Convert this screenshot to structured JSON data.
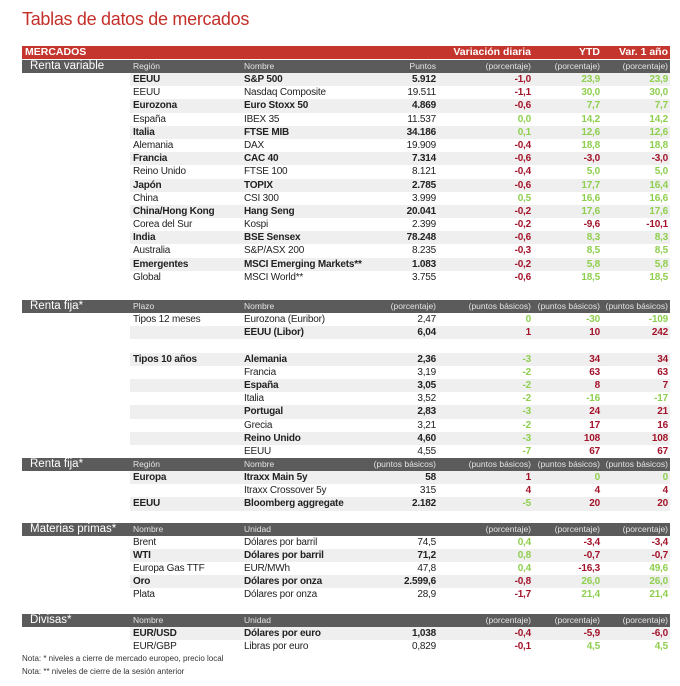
{
  "title": "Tablas de datos de mercados",
  "header": {
    "label": "MERCADOS",
    "col_daily": "Variación diaria",
    "col_ytd": "YTD",
    "col_year": "Var. 1 año"
  },
  "colors": {
    "negative": "#a3142b",
    "positive": "#8fcf4f",
    "header_red": "#c3352d",
    "section_gray": "#5b5b5b"
  },
  "sections": [
    {
      "label": "Renta variable",
      "cols": [
        "Región",
        "Nombre",
        "Puntos",
        "(porcentaje)",
        "(porcentaje)",
        "(porcentaje)"
      ],
      "shade_start": 0,
      "gap_after": 16,
      "rows": [
        [
          "EEUU",
          "S&P 500",
          "5.912",
          [
            "-1,0",
            "r"
          ],
          [
            "23,9",
            "g"
          ],
          [
            "23,9",
            "g"
          ]
        ],
        [
          "EEUU",
          "Nasdaq Composite",
          "19.511",
          [
            "-1,1",
            "r"
          ],
          [
            "30,0",
            "g"
          ],
          [
            "30,0",
            "g"
          ]
        ],
        [
          "Eurozona",
          "Euro Stoxx 50",
          "4.869",
          [
            "-0,6",
            "r"
          ],
          [
            "7,7",
            "g"
          ],
          [
            "7,7",
            "g"
          ]
        ],
        [
          "España",
          "IBEX 35",
          "11.537",
          [
            "0,0",
            "g"
          ],
          [
            "14,2",
            "g"
          ],
          [
            "14,2",
            "g"
          ]
        ],
        [
          "Italia",
          "FTSE MIB",
          "34.186",
          [
            "0,1",
            "g"
          ],
          [
            "12,6",
            "g"
          ],
          [
            "12,6",
            "g"
          ]
        ],
        [
          "Alemania",
          "DAX",
          "19.909",
          [
            "-0,4",
            "r"
          ],
          [
            "18,8",
            "g"
          ],
          [
            "18,8",
            "g"
          ]
        ],
        [
          "Francia",
          "CAC 40",
          "7.314",
          [
            "-0,6",
            "r"
          ],
          [
            "-3,0",
            "r"
          ],
          [
            "-3,0",
            "r"
          ]
        ],
        [
          "Reino Unido",
          "FTSE 100",
          "8.121",
          [
            "-0,4",
            "r"
          ],
          [
            "5,0",
            "g"
          ],
          [
            "5,0",
            "g"
          ]
        ],
        [
          "Japón",
          "TOPIX",
          "2.785",
          [
            "-0,6",
            "r"
          ],
          [
            "17,7",
            "g"
          ],
          [
            "16,4",
            "g"
          ]
        ],
        [
          "China",
          "CSI 300",
          "3.999",
          [
            "0,5",
            "g"
          ],
          [
            "16,6",
            "g"
          ],
          [
            "16,6",
            "g"
          ]
        ],
        [
          "China/Hong Kong",
          "Hang Seng",
          "20.041",
          [
            "-0,2",
            "r"
          ],
          [
            "17,6",
            "g"
          ],
          [
            "17,6",
            "g"
          ]
        ],
        [
          "Corea del Sur",
          "Kospi",
          "2.399",
          [
            "-0,2",
            "r"
          ],
          [
            "-9,6",
            "r"
          ],
          [
            "-10,1",
            "r"
          ]
        ],
        [
          "India",
          "BSE Sensex",
          "78.248",
          [
            "-0,6",
            "r"
          ],
          [
            "8,3",
            "g"
          ],
          [
            "8,3",
            "g"
          ]
        ],
        [
          "Australia",
          "S&P/ASX 200",
          "8.235",
          [
            "-0,3",
            "r"
          ],
          [
            "8,5",
            "g"
          ],
          [
            "8,5",
            "g"
          ]
        ],
        [
          "Emergentes",
          "MSCI Emerging Markets**",
          "1.083",
          [
            "-0,2",
            "r"
          ],
          [
            "5,8",
            "g"
          ],
          [
            "5,8",
            "g"
          ]
        ],
        [
          "Global",
          "MSCI World**",
          "3.755",
          [
            "-0,6",
            "r"
          ],
          [
            "18,5",
            "g"
          ],
          [
            "18,5",
            "g"
          ]
        ]
      ]
    },
    {
      "label": "Renta fija*",
      "cols": [
        "Plazo",
        "Nombre",
        "(porcentaje)",
        "(puntos básicos)",
        "(puntos básicos)",
        "(puntos básicos)"
      ],
      "shade_start": 1,
      "gap_after": 0,
      "rows": [
        [
          "Tipos 12 meses",
          "Eurozona (Euribor)",
          "2,47",
          [
            "0",
            "g"
          ],
          [
            "-30",
            "g"
          ],
          [
            "-109",
            "g"
          ]
        ],
        [
          "",
          "EEUU (Libor)",
          "6,04",
          [
            "1",
            "r"
          ],
          [
            "10",
            "r"
          ],
          [
            "242",
            "r"
          ]
        ],
        null,
        [
          "Tipos 10 años",
          "Alemania",
          "2,36",
          [
            "-3",
            "g"
          ],
          [
            "34",
            "r"
          ],
          [
            "34",
            "r"
          ]
        ],
        [
          "",
          "Francia",
          "3,19",
          [
            "-2",
            "g"
          ],
          [
            "63",
            "r"
          ],
          [
            "63",
            "r"
          ]
        ],
        [
          "",
          "España",
          "3,05",
          [
            "-2",
            "g"
          ],
          [
            "8",
            "r"
          ],
          [
            "7",
            "r"
          ]
        ],
        [
          "",
          "Italia",
          "3,52",
          [
            "-2",
            "g"
          ],
          [
            "-16",
            "g"
          ],
          [
            "-17",
            "g"
          ]
        ],
        [
          "",
          "Portugal",
          "2,83",
          [
            "-3",
            "g"
          ],
          [
            "24",
            "r"
          ],
          [
            "21",
            "r"
          ]
        ],
        [
          "",
          "Grecia",
          "3,21",
          [
            "-2",
            "g"
          ],
          [
            "17",
            "r"
          ],
          [
            "16",
            "r"
          ]
        ],
        [
          "",
          "Reino Unido",
          "4,60",
          [
            "-3",
            "g"
          ],
          [
            "108",
            "r"
          ],
          [
            "108",
            "r"
          ]
        ],
        [
          "",
          "EEUU",
          "4,55",
          [
            "-7",
            "g"
          ],
          [
            "67",
            "r"
          ],
          [
            "67",
            "r"
          ]
        ]
      ]
    },
    {
      "label": "Renta fija*",
      "cols": [
        "Región",
        "Nombre",
        "(puntos básicos)",
        "(puntos básicos)",
        "(puntos básicos)",
        "(puntos básicos)"
      ],
      "shade_start": 0,
      "gap_after": 12,
      "rows": [
        [
          "Europa",
          "Itraxx Main 5y",
          "58",
          [
            "1",
            "r"
          ],
          [
            "0",
            "g"
          ],
          [
            "0",
            "g"
          ]
        ],
        [
          "",
          "Itraxx Crossover 5y",
          "315",
          [
            "4",
            "r"
          ],
          [
            "4",
            "r"
          ],
          [
            "4",
            "r"
          ]
        ],
        [
          "EEUU",
          "Bloomberg aggregate",
          "2.182",
          [
            "-5",
            "g"
          ],
          [
            "20",
            "r"
          ],
          [
            "20",
            "r"
          ]
        ]
      ]
    },
    {
      "label": "Materias primas*",
      "cols": [
        "Nombre",
        "Unidad",
        "",
        "(porcentaje)",
        "(porcentaje)",
        "(porcentaje)"
      ],
      "shade_start": 1,
      "gap_after": 12,
      "rows": [
        [
          "Brent",
          "Dólares por barril",
          "74,5",
          [
            "0,4",
            "g"
          ],
          [
            "-3,4",
            "r"
          ],
          [
            "-3,4",
            "r"
          ]
        ],
        [
          "WTI",
          "Dólares por barril",
          "71,2",
          [
            "0,8",
            "g"
          ],
          [
            "-0,7",
            "r"
          ],
          [
            "-0,7",
            "r"
          ]
        ],
        [
          "Europa Gas TTF",
          "EUR/MWh",
          "47,8",
          [
            "0,4",
            "g"
          ],
          [
            "-16,3",
            "r"
          ],
          [
            "49,6",
            "g"
          ]
        ],
        [
          "Oro",
          "Dólares por onza",
          "2.599,6",
          [
            "-0,8",
            "r"
          ],
          [
            "26,0",
            "g"
          ],
          [
            "26,0",
            "g"
          ]
        ],
        [
          "Plata",
          "Dólares por onza",
          "28,9",
          [
            "-1,7",
            "r"
          ],
          [
            "21,4",
            "g"
          ],
          [
            "21,4",
            "g"
          ]
        ]
      ]
    },
    {
      "label": "Divisas*",
      "cols": [
        "Nombre",
        "Unidad",
        "",
        "(porcentaje)",
        "(porcentaje)",
        "(porcentaje)"
      ],
      "shade_start": 0,
      "gap_after": 0,
      "rows": [
        [
          "EUR/USD",
          "Dólares por euro",
          "1,038",
          [
            "-0,4",
            "r"
          ],
          [
            "-5,9",
            "r"
          ],
          [
            "-6,0",
            "r"
          ]
        ],
        [
          "EUR/GBP",
          "Libras por euro",
          "0,829",
          [
            "-0,1",
            "r"
          ],
          [
            "4,5",
            "g"
          ],
          [
            "4,5",
            "g"
          ]
        ]
      ]
    }
  ],
  "notes": [
    "Nota: * niveles a cierre de mercado europeo, precio local",
    "Nota: ** niveles de cierre de la sesión anterior"
  ]
}
